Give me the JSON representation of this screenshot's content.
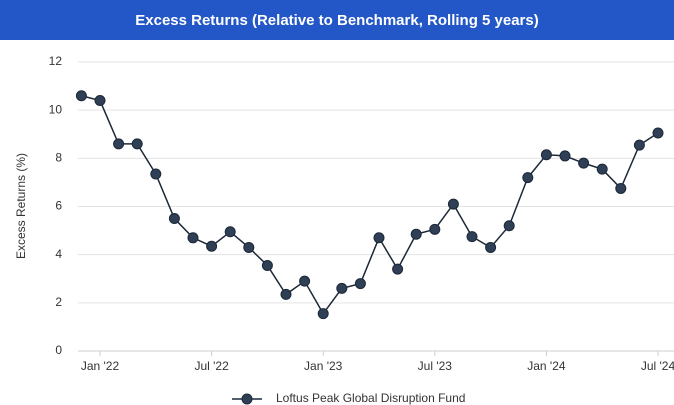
{
  "chart_data": {
    "type": "line",
    "title": "Excess Returns (Relative to Benchmark, Rolling 5 years)",
    "y_label": "Excess Returns (%)",
    "x": [
      "2021-12",
      "2022-01",
      "2022-02",
      "2022-03",
      "2022-04",
      "2022-05",
      "2022-06",
      "2022-07",
      "2022-08",
      "2022-09",
      "2022-10",
      "2022-11",
      "2022-12",
      "2023-01",
      "2023-02",
      "2023-03",
      "2023-04",
      "2023-05",
      "2023-06",
      "2023-07",
      "2023-08",
      "2023-09",
      "2023-10",
      "2023-11",
      "2023-12",
      "2024-01",
      "2024-02",
      "2024-03",
      "2024-04",
      "2024-05",
      "2024-06",
      "2024-07"
    ],
    "series": [
      {
        "name": "Loftus Peak Global Disruption Fund",
        "color": "#2e3f56",
        "values": [
          10.6,
          10.4,
          8.6,
          8.6,
          7.35,
          5.5,
          4.7,
          4.35,
          4.95,
          4.3,
          3.55,
          2.35,
          2.9,
          1.55,
          2.6,
          2.8,
          4.7,
          3.4,
          4.85,
          5.05,
          6.1,
          4.75,
          4.3,
          5.2,
          7.2,
          8.15,
          8.1,
          7.8,
          7.55,
          6.75,
          8.55,
          9.05
        ]
      }
    ],
    "xticks": [
      {
        "value": "2022-01",
        "label": "Jan '22"
      },
      {
        "value": "2022-07",
        "label": "Jul '22"
      },
      {
        "value": "2023-01",
        "label": "Jan '23"
      },
      {
        "value": "2023-07",
        "label": "Jul '23"
      },
      {
        "value": "2024-01",
        "label": "Jan '24"
      },
      {
        "value": "2024-07",
        "label": "Jul '24"
      }
    ],
    "ylim": [
      0,
      12
    ],
    "yticks": [
      0,
      2,
      4,
      6,
      8,
      10,
      12
    ],
    "grid": true,
    "legend": "bottom",
    "title_color": "#2356c6"
  }
}
